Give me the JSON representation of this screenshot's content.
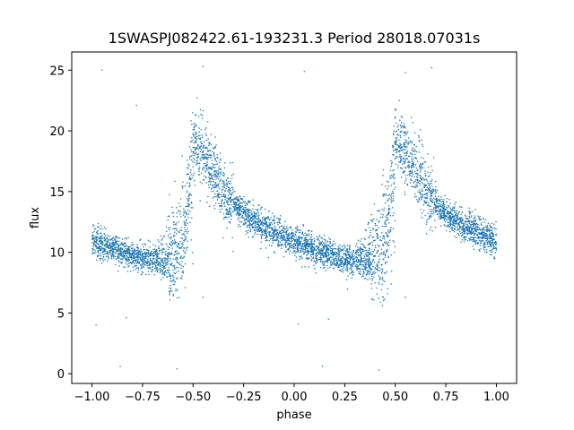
{
  "chart_data": {
    "type": "scatter",
    "title": "1SWASPJ082422.61-193231.3 Period 28018.07031s",
    "xlabel": "phase",
    "ylabel": "flux",
    "xlim": [
      -1.1,
      1.1
    ],
    "ylim": [
      -0.8,
      26.5
    ],
    "x_ticks": [
      -1.0,
      -0.75,
      -0.5,
      -0.25,
      0.0,
      0.25,
      0.5,
      0.75,
      1.0
    ],
    "x_tick_labels": [
      "−1.00",
      "−0.75",
      "−0.50",
      "−0.25",
      "0.00",
      "0.25",
      "0.50",
      "0.75",
      "1.00"
    ],
    "y_ticks": [
      0,
      5,
      10,
      15,
      20,
      25
    ],
    "y_tick_labels": [
      "0",
      "5",
      "10",
      "15",
      "20",
      "25"
    ],
    "grid": false,
    "marker_color": "#1f77b4",
    "series": [
      {
        "phase_profile": [
          {
            "phase": -0.5,
            "flux": 19.0
          },
          {
            "phase": -0.45,
            "flux": 18.2
          },
          {
            "phase": -0.4,
            "flux": 16.8
          },
          {
            "phase": -0.35,
            "flux": 15.0
          },
          {
            "phase": -0.3,
            "flux": 14.0
          },
          {
            "phase": -0.25,
            "flux": 13.2
          },
          {
            "phase": -0.2,
            "flux": 12.6
          },
          {
            "phase": -0.15,
            "flux": 12.1
          },
          {
            "phase": -0.1,
            "flux": 11.7
          },
          {
            "phase": -0.05,
            "flux": 11.3
          },
          {
            "phase": 0.0,
            "flux": 10.9
          },
          {
            "phase": 0.05,
            "flux": 10.6
          },
          {
            "phase": 0.1,
            "flux": 10.3
          },
          {
            "phase": 0.15,
            "flux": 10.0
          },
          {
            "phase": 0.2,
            "flux": 9.7
          },
          {
            "phase": 0.25,
            "flux": 9.5
          },
          {
            "phase": 0.3,
            "flux": 9.3
          },
          {
            "phase": 0.35,
            "flux": 9.15
          },
          {
            "phase": 0.4,
            "flux": 9.0
          },
          {
            "phase": 0.44,
            "flux": 9.1
          },
          {
            "phase": 0.47,
            "flux": 13.5
          },
          {
            "phase": 0.5,
            "flux": 19.0
          }
        ],
        "scatter_std": 0.6,
        "bright_branch_std": 1.6,
        "outliers": [
          {
            "phase": -0.95,
            "flux": 25.0
          },
          {
            "phase": -0.78,
            "flux": 22.1
          },
          {
            "phase": -0.45,
            "flux": 25.3
          },
          {
            "phase": -0.48,
            "flux": 22.7
          },
          {
            "phase": 0.05,
            "flux": 24.9
          },
          {
            "phase": -0.86,
            "flux": 0.6
          },
          {
            "phase": 0.14,
            "flux": 0.6
          },
          {
            "phase": -0.98,
            "flux": 4.0
          },
          {
            "phase": 0.02,
            "flux": 4.1
          },
          {
            "phase": -0.83,
            "flux": 4.6
          },
          {
            "phase": 0.17,
            "flux": 4.5
          },
          {
            "phase": -0.45,
            "flux": 6.3
          },
          {
            "phase": 0.55,
            "flux": 6.3
          },
          {
            "phase": 0.68,
            "flux": 25.2
          },
          {
            "phase": 0.42,
            "flux": 0.3
          },
          {
            "phase": -0.58,
            "flux": 0.4
          },
          {
            "phase": 0.55,
            "flux": 24.8
          },
          {
            "phase": 0.52,
            "flux": 22.5
          }
        ]
      }
    ]
  }
}
